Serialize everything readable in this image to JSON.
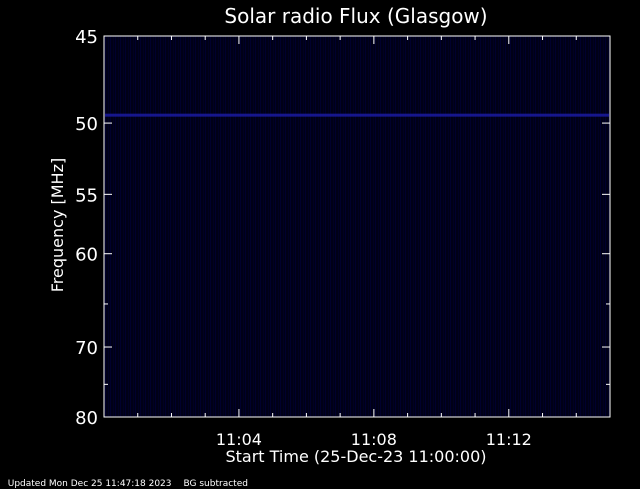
{
  "chart_data": {
    "type": "heatmap",
    "title": "Solar radio Flux (Glasgow)",
    "xlabel": "Start Time (25-Dec-23 11:00:00)",
    "ylabel": "Frequency [MHz]",
    "x_ticks": [
      "11:04",
      "11:08",
      "11:12"
    ],
    "x_tick_minutes": [
      4,
      8,
      12
    ],
    "xlim_minutes": [
      0,
      15
    ],
    "y_ticks": [
      45,
      50,
      55,
      60,
      70,
      80
    ],
    "ylim": [
      45,
      80
    ],
    "y_scale": "reciprocal",
    "grid": false,
    "colors": {
      "background": "#000000",
      "spectrum": "#00003a",
      "band": "#1a1aa0",
      "axes": "#ffffff"
    },
    "features": [
      {
        "kind": "horizontal-band",
        "frequency_mhz": 49.5
      }
    ]
  },
  "footer": {
    "updated": "Updated Mon Dec 25 11:47:18 2023",
    "note": "BG subtracted"
  }
}
